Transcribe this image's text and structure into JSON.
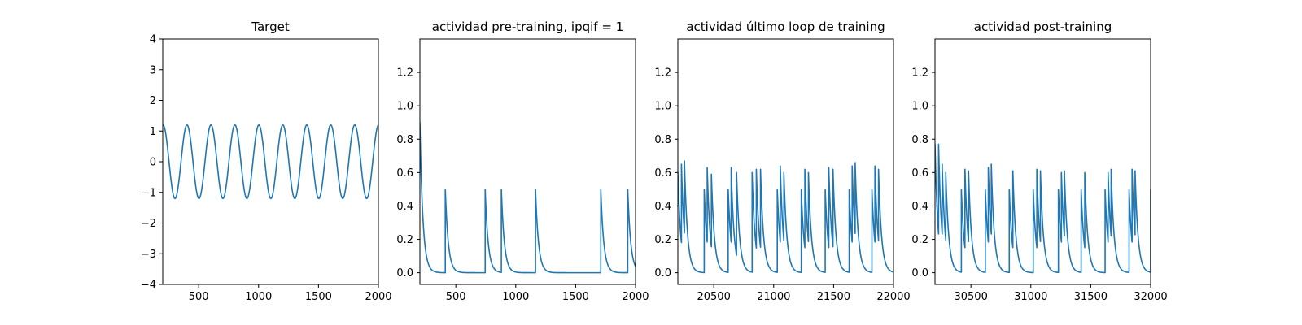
{
  "figure": {
    "background": "#ffffff",
    "line_color": "#1f77b4"
  },
  "chart_data": [
    {
      "type": "line",
      "title": "Target",
      "xlabel": "",
      "ylabel": "",
      "xlim": [
        200,
        2000
      ],
      "ylim": [
        -4,
        4
      ],
      "xticks": [
        500,
        1000,
        1500,
        2000
      ],
      "yticks": [
        -4,
        -3,
        -2,
        -1,
        0,
        1,
        2,
        3,
        4
      ],
      "grid": false,
      "series": [
        {
          "x": [
            200,
            246,
            296,
            346,
            396,
            446,
            496,
            546,
            596,
            646,
            696,
            746,
            796,
            846,
            896,
            946,
            996,
            1046,
            1096,
            1146,
            1196,
            1246,
            1296,
            1346,
            1396,
            1446,
            1496,
            1546,
            1596,
            1646,
            1696,
            1746,
            1796,
            1846,
            1896,
            1946,
            1996,
            2000
          ],
          "y": [
            0.2,
            1.2,
            0,
            -1.2,
            0,
            1.2,
            0,
            -1.2,
            0,
            1.2,
            0,
            -1.2,
            0,
            1.2,
            0,
            -1.2,
            0,
            1.2,
            0,
            -1.2,
            0,
            1.2,
            0,
            -1.2,
            0,
            1.2,
            0,
            -1.2,
            0,
            1.2,
            0,
            -1.2,
            0,
            1.2,
            0,
            -1.2,
            0.4,
            0.4
          ]
        }
      ]
    },
    {
      "type": "line",
      "title": "actividad pre-training, ipqif = 1",
      "xlabel": "",
      "ylabel": "",
      "xlim": [
        200,
        2000
      ],
      "ylim": [
        -0.07,
        1.4
      ],
      "xticks": [
        500,
        1000,
        1500,
        2000
      ],
      "yticks": [
        0.0,
        0.2,
        0.4,
        0.6,
        0.8,
        1.0,
        1.2
      ],
      "ytick_labels": [
        "0.0",
        "0.2",
        "0.4",
        "0.6",
        "0.8",
        "1.0",
        "1.2"
      ],
      "grid": false,
      "decay": 25,
      "initial": 0.9,
      "spikes": [
        [
          412,
          0.5
        ],
        [
          745,
          0.5
        ],
        [
          880,
          0.5
        ],
        [
          1165,
          0.5
        ],
        [
          1710,
          0.5
        ],
        [
          1935,
          0.5
        ]
      ]
    },
    {
      "type": "line",
      "title": "actividad último loop de training",
      "xlabel": "",
      "ylabel": "",
      "xlim": [
        20200,
        22000
      ],
      "ylim": [
        -0.07,
        1.4
      ],
      "xticks": [
        20500,
        21000,
        21500,
        22000
      ],
      "yticks": [
        0.0,
        0.2,
        0.4,
        0.6,
        0.8,
        1.0,
        1.2
      ],
      "ytick_labels": [
        "0.0",
        "0.2",
        "0.4",
        "0.6",
        "0.8",
        "1.0",
        "1.2"
      ],
      "grid": false,
      "decay": 25,
      "initial": 0.6,
      "spikes": [
        [
          20230,
          0.65
        ],
        [
          20255,
          0.67
        ],
        [
          20420,
          0.5
        ],
        [
          20445,
          0.63
        ],
        [
          20480,
          0.59
        ],
        [
          20620,
          0.5
        ],
        [
          20645,
          0.63
        ],
        [
          20690,
          0.6
        ],
        [
          20820,
          0.6
        ],
        [
          20855,
          0.62
        ],
        [
          20890,
          0.62
        ],
        [
          21030,
          0.5
        ],
        [
          21055,
          0.64
        ],
        [
          21085,
          0.6
        ],
        [
          21230,
          0.5
        ],
        [
          21260,
          0.62
        ],
        [
          21290,
          0.6
        ],
        [
          21430,
          0.5
        ],
        [
          21460,
          0.63
        ],
        [
          21495,
          0.62
        ],
        [
          21630,
          0.5
        ],
        [
          21655,
          0.64
        ],
        [
          21680,
          0.66
        ],
        [
          21820,
          0.5
        ],
        [
          21845,
          0.64
        ],
        [
          21875,
          0.62
        ]
      ]
    },
    {
      "type": "line",
      "title": "actividad post-training",
      "xlabel": "",
      "ylabel": "",
      "xlim": [
        30200,
        32000
      ],
      "ylim": [
        -0.07,
        1.4
      ],
      "xticks": [
        30500,
        31000,
        31500,
        32000
      ],
      "yticks": [
        0.0,
        0.2,
        0.4,
        0.6,
        0.8,
        1.0,
        1.2
      ],
      "ytick_labels": [
        "0.0",
        "0.2",
        "0.4",
        "0.6",
        "0.8",
        "1.0",
        "1.2"
      ],
      "grid": false,
      "decay": 25,
      "initial": 0.77,
      "spikes": [
        [
          30230,
          0.77
        ],
        [
          30260,
          0.65
        ],
        [
          30290,
          0.6
        ],
        [
          30420,
          0.5
        ],
        [
          30450,
          0.62
        ],
        [
          30480,
          0.61
        ],
        [
          30620,
          0.5
        ],
        [
          30645,
          0.63
        ],
        [
          30670,
          0.65
        ],
        [
          30820,
          0.5
        ],
        [
          30850,
          0.61
        ],
        [
          31020,
          0.5
        ],
        [
          31050,
          0.62
        ],
        [
          31080,
          0.61
        ],
        [
          31230,
          0.5
        ],
        [
          31255,
          0.6
        ],
        [
          31280,
          0.61
        ],
        [
          31420,
          0.5
        ],
        [
          31450,
          0.6
        ],
        [
          31620,
          0.5
        ],
        [
          31645,
          0.6
        ],
        [
          31670,
          0.62
        ],
        [
          31820,
          0.5
        ],
        [
          31845,
          0.62
        ],
        [
          31870,
          0.61
        ],
        [
          32000,
          0.5
        ]
      ]
    }
  ]
}
